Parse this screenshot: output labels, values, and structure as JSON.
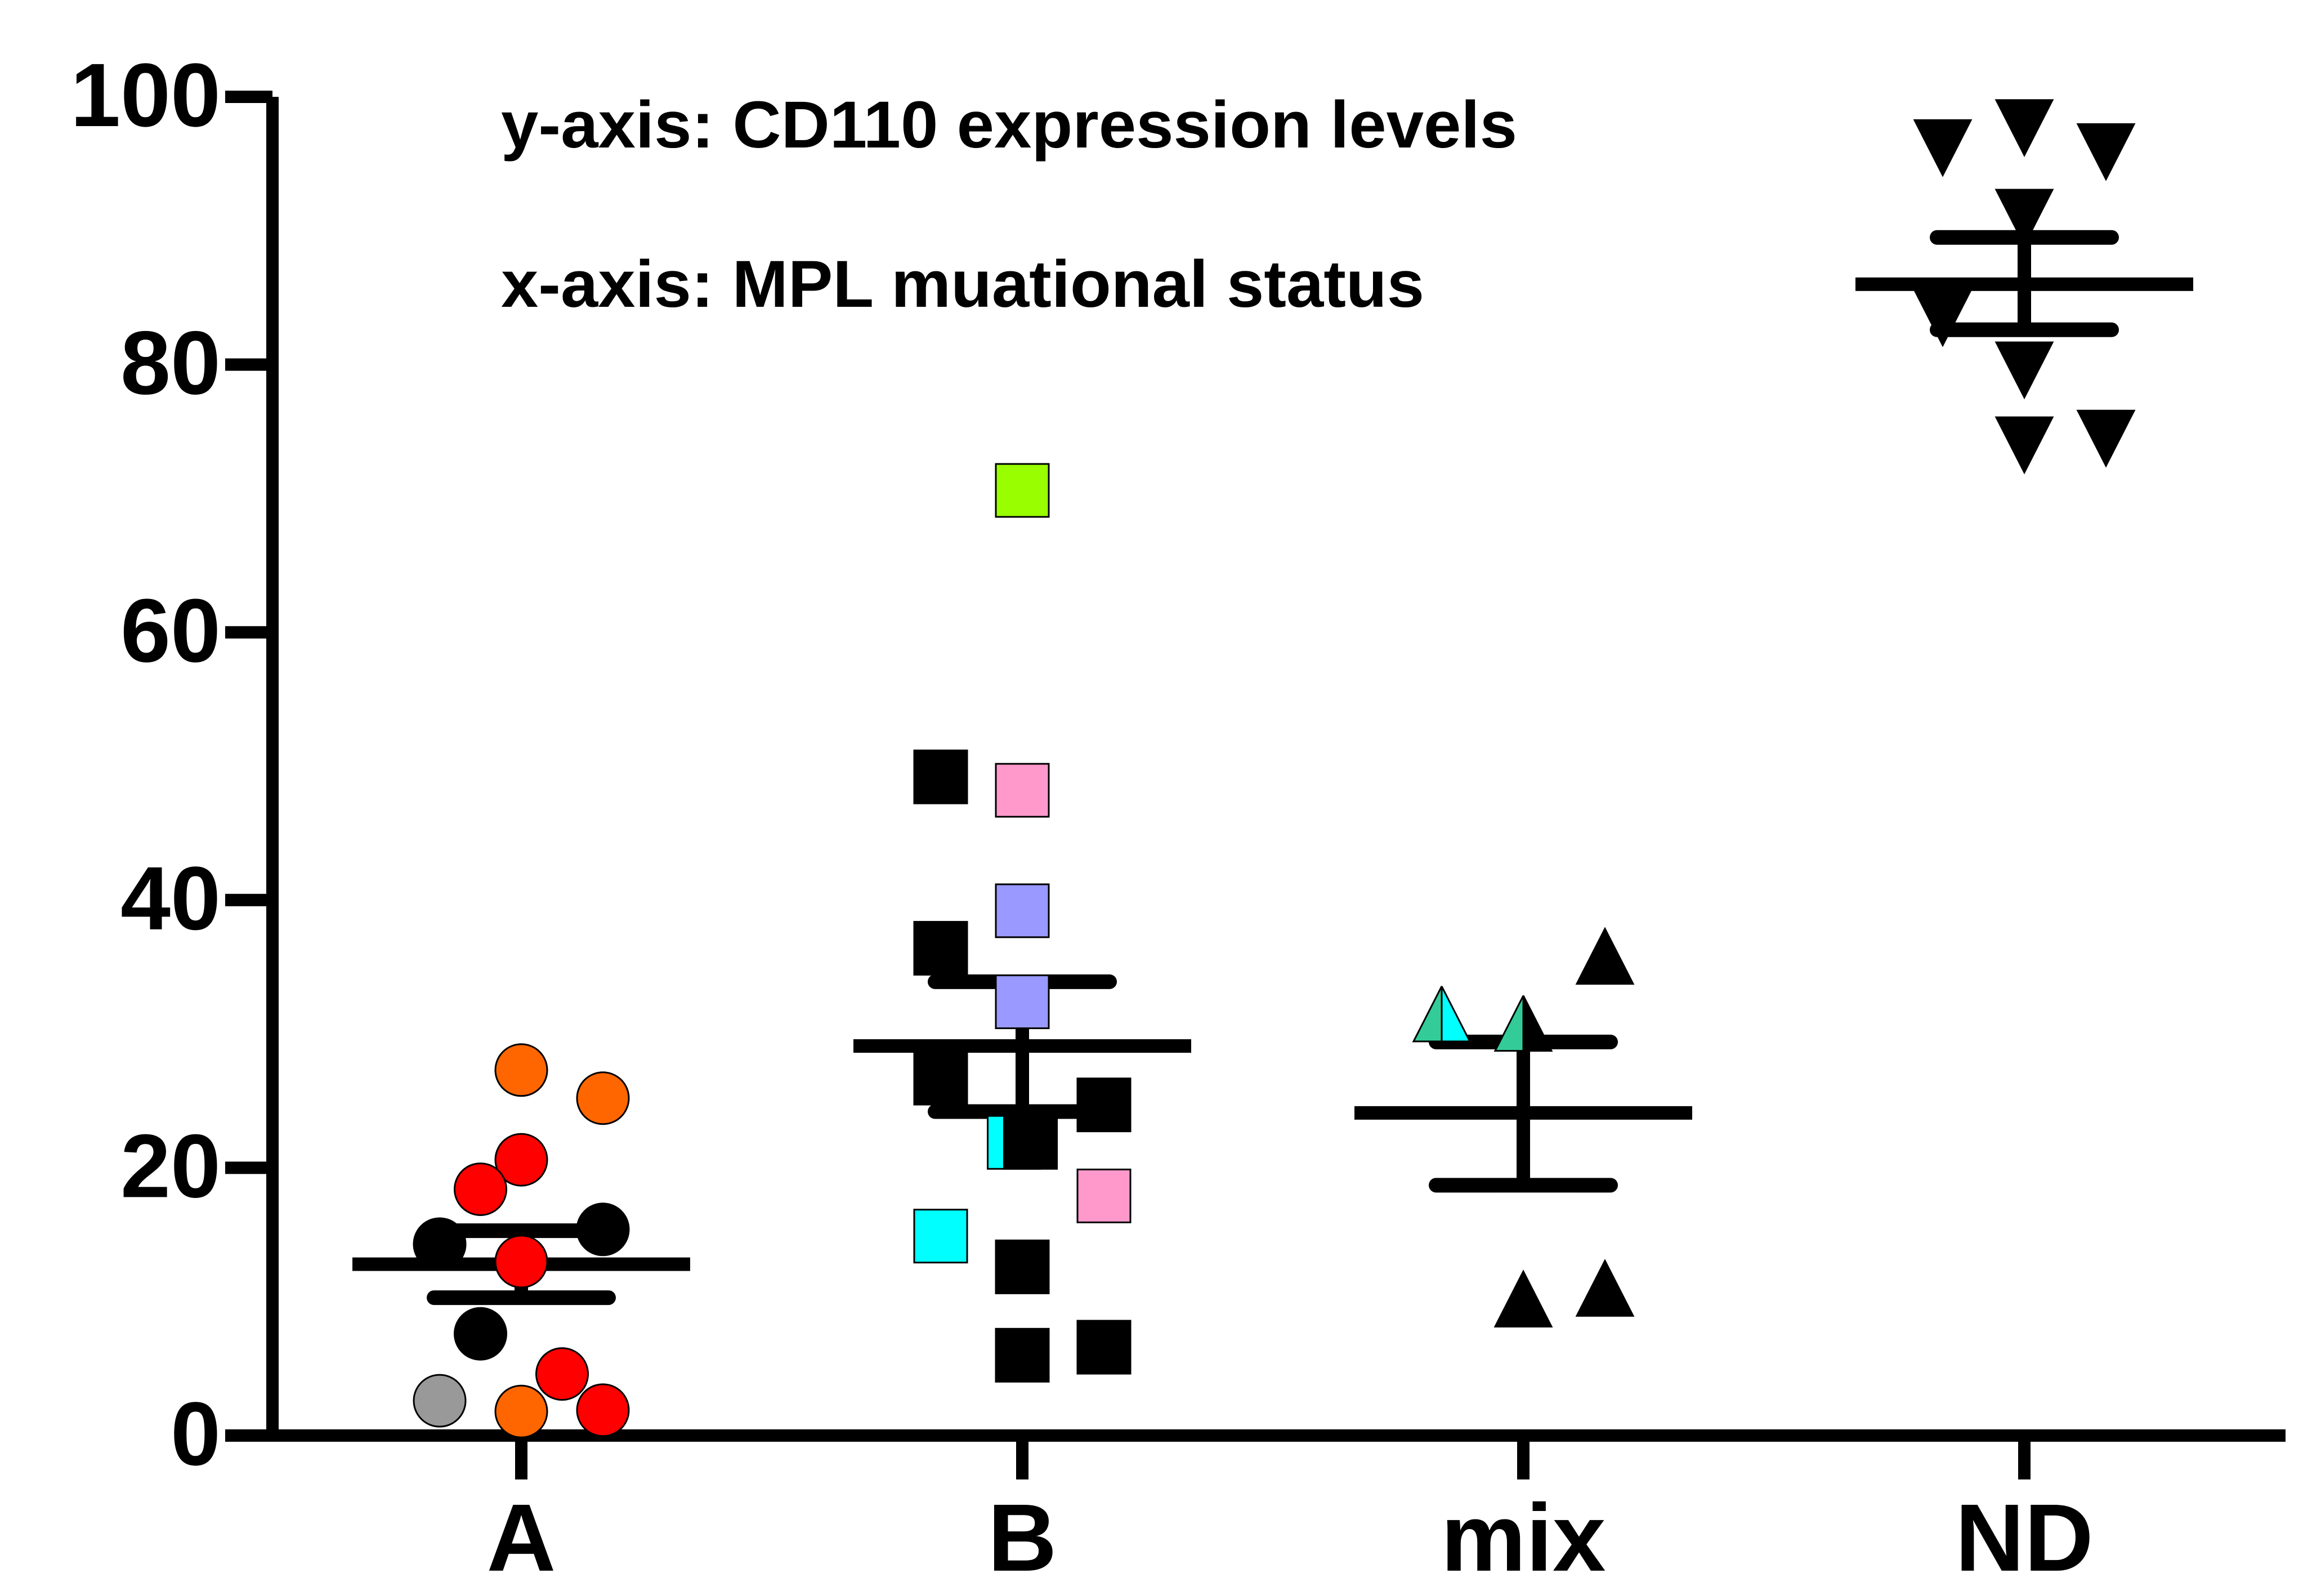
{
  "chart_data": {
    "type": "scatter",
    "title": "",
    "xlabel": "",
    "ylabel": "",
    "ylim": [
      0,
      100
    ],
    "yticks": [
      0,
      20,
      40,
      60,
      80,
      100
    ],
    "categories": [
      "A",
      "B",
      "mix",
      "ND"
    ],
    "annotations": [
      "y-axis: CD110 expression levels",
      "x-axis: MPL muational status"
    ],
    "colors": {
      "black": "#000000",
      "red": "#ff0000",
      "orange": "#ff6600",
      "gray": "#999999",
      "green": "#99ff00",
      "pink": "#ff99cc",
      "lavender": "#9999ff",
      "cyan": "#00ffff",
      "teal": "#33cc99"
    },
    "series": [
      {
        "name": "A",
        "marker": "circle",
        "mean": 12.8,
        "sem_low": 10.3,
        "sem_high": 15.3,
        "points": [
          {
            "dx": 0,
            "y": 27.3,
            "color": "orange"
          },
          {
            "dx": 1,
            "y": 25.2,
            "color": "orange"
          },
          {
            "dx": 0,
            "y": 20.6,
            "color": "red"
          },
          {
            "dx": -0.5,
            "y": 18.4,
            "color": "red"
          },
          {
            "dx": 1,
            "y": 15.4,
            "color": "black"
          },
          {
            "dx": -1,
            "y": 14.3,
            "color": "black"
          },
          {
            "dx": 0,
            "y": 13.0,
            "color": "red"
          },
          {
            "dx": -0.5,
            "y": 7.6,
            "color": "black"
          },
          {
            "dx": 0.5,
            "y": 4.6,
            "color": "red"
          },
          {
            "dx": -1,
            "y": 2.6,
            "color": "gray"
          },
          {
            "dx": 0,
            "y": 1.8,
            "color": "orange"
          },
          {
            "dx": 1,
            "y": 1.9,
            "color": "red"
          }
        ]
      },
      {
        "name": "B",
        "marker": "square",
        "mean": 29.1,
        "sem_low": 24.2,
        "sem_high": 33.9,
        "points": [
          {
            "dx": 0,
            "y": 70.6,
            "color": "green"
          },
          {
            "dx": -1,
            "y": 49.2,
            "color": "black"
          },
          {
            "dx": 0,
            "y": 48.2,
            "color": "pink"
          },
          {
            "dx": 0,
            "y": 39.2,
            "color": "lavender"
          },
          {
            "dx": -1,
            "y": 36.4,
            "color": "black"
          },
          {
            "dx": 0,
            "y": 32.4,
            "color": "lavender"
          },
          {
            "dx": -1,
            "y": 26.7,
            "color": "black"
          },
          {
            "dx": 1,
            "y": 24.7,
            "color": "black"
          },
          {
            "dx": -0.1,
            "y": 21.9,
            "color": "cyan"
          },
          {
            "dx": 0.1,
            "y": 21.9,
            "color": "black"
          },
          {
            "dx": 1,
            "y": 17.9,
            "color": "pink"
          },
          {
            "dx": -1,
            "y": 14.9,
            "color": "cyan"
          },
          {
            "dx": 0,
            "y": 12.6,
            "color": "black"
          },
          {
            "dx": 0,
            "y": 6.0,
            "color": "black"
          },
          {
            "dx": 1,
            "y": 6.6,
            "color": "black"
          }
        ]
      },
      {
        "name": "mix",
        "marker": "triangle-up",
        "mean": 24.1,
        "sem_low": 18.7,
        "sem_high": 29.4,
        "points": [
          {
            "dx": 1,
            "y": 35.8,
            "color": "black"
          },
          {
            "dx": -1,
            "y": 31.5,
            "color": "teal",
            "color2": "cyan"
          },
          {
            "dx": 0,
            "y": 30.8,
            "color": "teal",
            "color2": "black"
          },
          {
            "dx": 1,
            "y": 11.0,
            "color": "black"
          },
          {
            "dx": 0,
            "y": 10.2,
            "color": "black"
          }
        ]
      },
      {
        "name": "ND",
        "marker": "triangle-down",
        "mean": 86.0,
        "sem_low": 82.6,
        "sem_high": 89.5,
        "points": [
          {
            "dx": 0,
            "y": 97.7,
            "color": "black"
          },
          {
            "dx": -1,
            "y": 96.2,
            "color": "black"
          },
          {
            "dx": 1,
            "y": 95.9,
            "color": "black"
          },
          {
            "dx": 0,
            "y": 91.0,
            "color": "black"
          },
          {
            "dx": -1,
            "y": 83.5,
            "color": "black"
          },
          {
            "dx": 0,
            "y": 79.6,
            "color": "black"
          },
          {
            "dx": 1,
            "y": 74.5,
            "color": "black"
          },
          {
            "dx": 0,
            "y": 74.0,
            "color": "black"
          }
        ]
      }
    ]
  }
}
